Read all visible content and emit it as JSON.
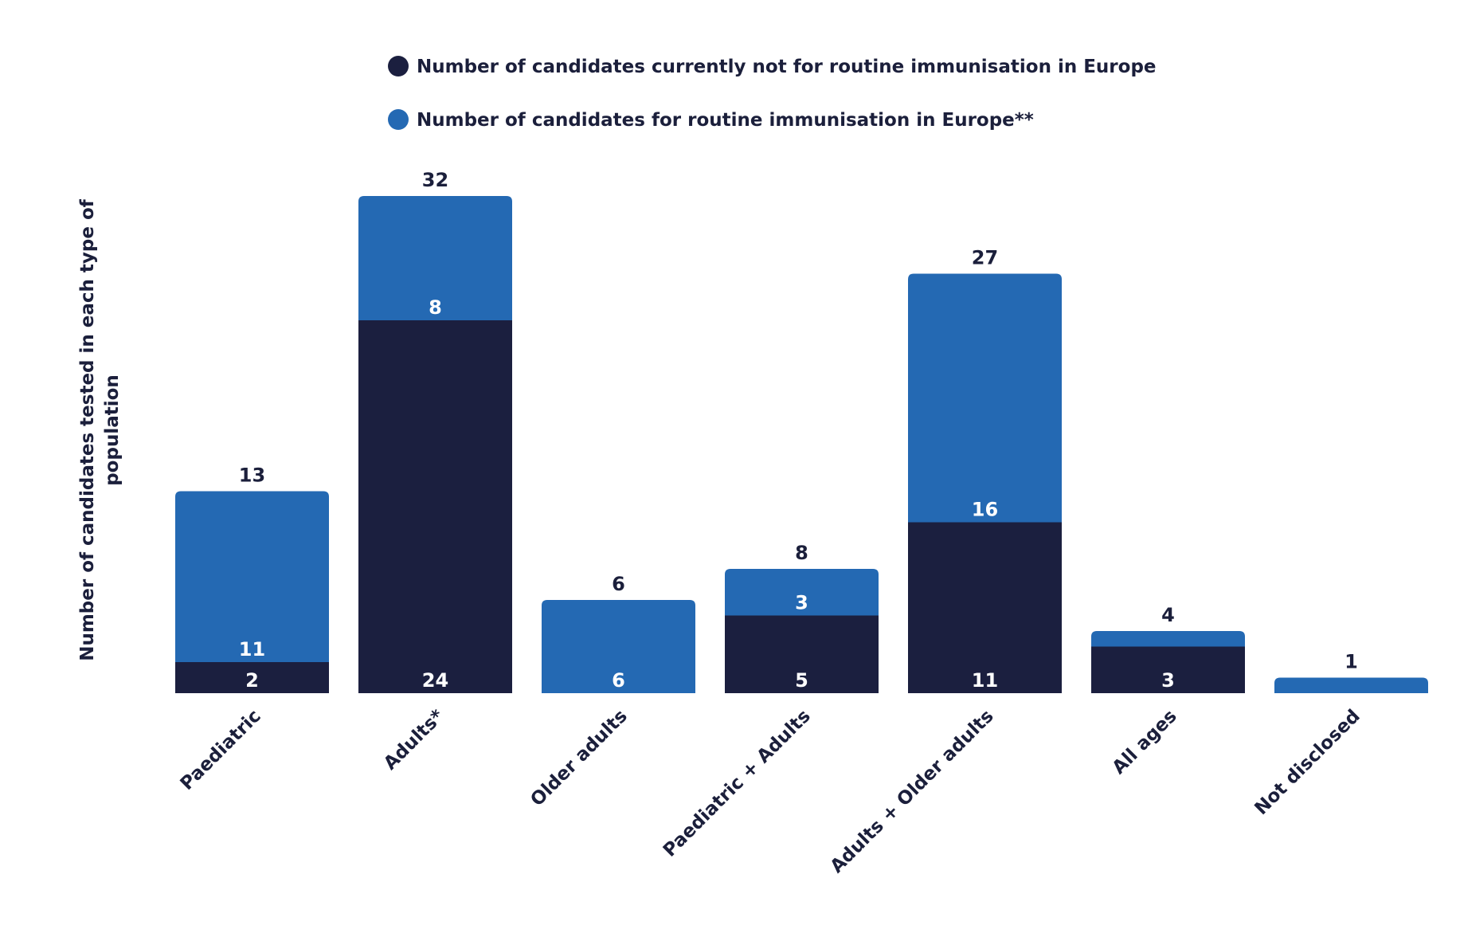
{
  "chart_data": {
    "type": "bar",
    "stacked": true,
    "categories": [
      "Paediatric",
      "Adults*",
      "Older adults",
      "Paediatric + Adults",
      "Adults + Older adults",
      "All ages",
      "Not disclosed"
    ],
    "series": [
      {
        "name": "Number of candidates currently not for routine immunisation in Europe",
        "color": "#1b1f3f",
        "values": [
          2,
          24,
          0,
          5,
          11,
          3,
          0
        ],
        "labels": [
          "2",
          "24",
          "",
          "5",
          "11",
          "3",
          ""
        ]
      },
      {
        "name": "Number of candidates for routine immunisation in Europe**",
        "color": "#2469b3",
        "values": [
          11,
          8,
          6,
          3,
          16,
          1,
          1
        ],
        "labels": [
          "11",
          "8",
          "6",
          "3",
          "16",
          "",
          ""
        ]
      }
    ],
    "totals": [
      "13",
      "32",
      "6",
      "8",
      "27",
      "4",
      "1"
    ],
    "ylabel_lines": [
      "Number of candidates tested in each type of",
      "population"
    ],
    "ylim": [
      0,
      32
    ],
    "legend_position": "top",
    "grid": false
  }
}
